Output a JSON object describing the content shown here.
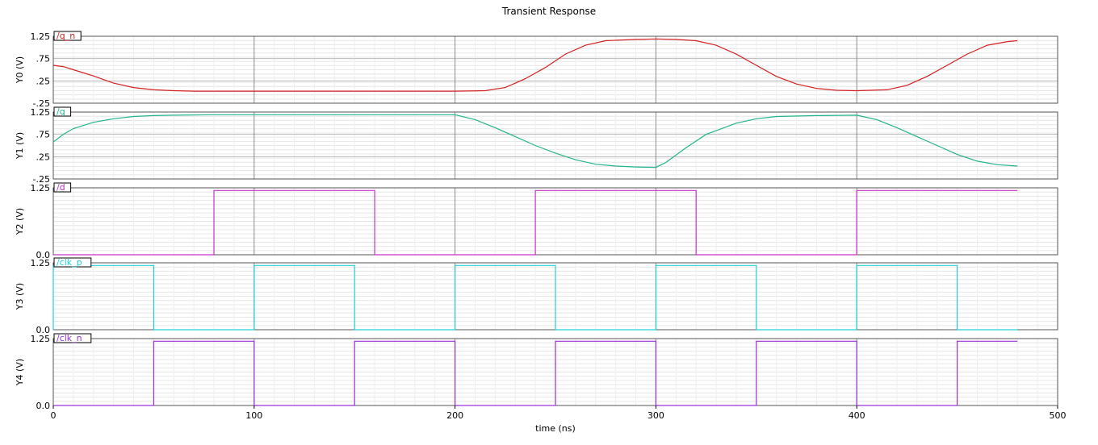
{
  "title": "Transient Response",
  "xlabel": "time (ns)",
  "x_ticks": [
    "0",
    "100",
    "200",
    "300",
    "400",
    "500"
  ],
  "colors": {
    "q_n": "#d42020",
    "q": "#20b48c",
    "d": "#c830c8",
    "clk_p": "#20d0d8",
    "clk_n": "#9a30d8"
  },
  "chart_data": [
    {
      "type": "line",
      "ylabel": "Y0 (V)",
      "legend": "/q_n",
      "color": "#d42020",
      "xlim": [
        0,
        500
      ],
      "ylim": [
        -0.25,
        1.25
      ],
      "y_ticks": [
        "1.25",
        ".75",
        ".25",
        "-.25"
      ],
      "y_tick_values": [
        1.25,
        0.75,
        0.25,
        -0.25
      ],
      "x": [
        0,
        5,
        10,
        20,
        30,
        40,
        50,
        60,
        70,
        100,
        150,
        200,
        215,
        225,
        235,
        245,
        255,
        265,
        275,
        290,
        300,
        310,
        320,
        330,
        340,
        350,
        360,
        370,
        380,
        390,
        400,
        415,
        425,
        435,
        445,
        455,
        465,
        475,
        480
      ],
      "y": [
        0.6,
        0.57,
        0.5,
        0.36,
        0.2,
        0.1,
        0.05,
        0.03,
        0.02,
        0.02,
        0.02,
        0.02,
        0.03,
        0.1,
        0.3,
        0.55,
        0.85,
        1.05,
        1.15,
        1.18,
        1.19,
        1.18,
        1.15,
        1.05,
        0.85,
        0.6,
        0.35,
        0.18,
        0.08,
        0.04,
        0.03,
        0.05,
        0.15,
        0.35,
        0.6,
        0.85,
        1.05,
        1.13,
        1.15
      ]
    },
    {
      "type": "line",
      "ylabel": "Y1 (V)",
      "legend": "/q",
      "color": "#20b48c",
      "xlim": [
        0,
        500
      ],
      "ylim": [
        -0.25,
        1.25
      ],
      "y_ticks": [
        "1.25",
        ".75",
        ".25",
        "-.25"
      ],
      "y_tick_values": [
        1.25,
        0.75,
        0.25,
        -0.25
      ],
      "x": [
        0,
        5,
        10,
        20,
        30,
        40,
        50,
        60,
        80,
        100,
        150,
        200,
        210,
        220,
        230,
        240,
        250,
        260,
        270,
        280,
        290,
        299,
        300,
        305,
        315,
        325,
        340,
        350,
        360,
        380,
        400,
        410,
        420,
        430,
        440,
        450,
        460,
        470,
        480
      ],
      "y": [
        0.58,
        0.75,
        0.88,
        1.02,
        1.1,
        1.15,
        1.17,
        1.18,
        1.19,
        1.19,
        1.19,
        1.19,
        1.08,
        0.9,
        0.7,
        0.5,
        0.33,
        0.18,
        0.08,
        0.04,
        0.02,
        0.01,
        0.01,
        0.12,
        0.45,
        0.75,
        1.0,
        1.1,
        1.15,
        1.17,
        1.18,
        1.08,
        0.9,
        0.7,
        0.5,
        0.3,
        0.15,
        0.07,
        0.04
      ]
    },
    {
      "type": "line",
      "ylabel": "Y2 (V)",
      "legend": "/d",
      "color": "#c830c8",
      "xlim": [
        0,
        500
      ],
      "ylim": [
        0,
        1.25
      ],
      "y_ticks": [
        "1.25",
        "0.0"
      ],
      "y_tick_values": [
        1.25,
        0
      ],
      "x": [
        0,
        80,
        80,
        160,
        160,
        240,
        240,
        320,
        320,
        400,
        400,
        480
      ],
      "y": [
        0,
        0,
        1.2,
        1.2,
        0,
        0,
        1.2,
        1.2,
        0,
        0,
        1.2,
        1.2
      ]
    },
    {
      "type": "line",
      "ylabel": "Y3 (V)",
      "legend": "/clk_p",
      "color": "#20d0d8",
      "xlim": [
        0,
        500
      ],
      "ylim": [
        0,
        1.25
      ],
      "y_ticks": [
        "1.25",
        "0.0"
      ],
      "y_tick_values": [
        1.25,
        0
      ],
      "x": [
        0,
        0,
        50,
        50,
        100,
        100,
        150,
        150,
        200,
        200,
        250,
        250,
        300,
        300,
        350,
        350,
        400,
        400,
        450,
        450,
        480
      ],
      "y": [
        0,
        1.2,
        1.2,
        0,
        0,
        1.2,
        1.2,
        0,
        0,
        1.2,
        1.2,
        0,
        0,
        1.2,
        1.2,
        0,
        0,
        1.2,
        1.2,
        0,
        0
      ]
    },
    {
      "type": "line",
      "ylabel": "Y4 (V)",
      "legend": "/clk_n",
      "color": "#9a30d8",
      "xlim": [
        0,
        500
      ],
      "ylim": [
        0,
        1.25
      ],
      "y_ticks": [
        "1.25",
        "0.0"
      ],
      "y_tick_values": [
        1.25,
        0
      ],
      "x": [
        0,
        50,
        50,
        100,
        100,
        150,
        150,
        200,
        200,
        250,
        250,
        300,
        300,
        350,
        350,
        400,
        400,
        450,
        450,
        480
      ],
      "y": [
        0,
        0,
        1.2,
        1.2,
        0,
        0,
        1.2,
        1.2,
        0,
        0,
        1.2,
        1.2,
        0,
        0,
        1.2,
        1.2,
        0,
        0,
        1.2,
        1.2
      ]
    }
  ]
}
